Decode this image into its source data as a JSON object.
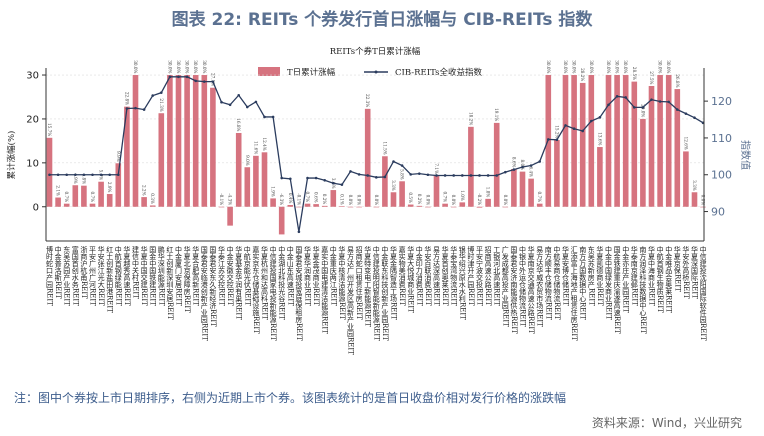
{
  "title": "图表 22: REITs 个券发行首日涨幅与 CIB-REITs 指数",
  "note": "注：图中个券按上市日期排序，右侧为近期上市个券。该图表统计的是首日收盘价相对发行价格的涨跌幅",
  "source": "资料来源：Wind，兴业研究",
  "colors": {
    "bar": "#d6737f",
    "line": "#2b3c5e",
    "title": "#5b7191"
  },
  "chart_data": {
    "type": "bar+line",
    "title": "REITs个券T日累计涨幅",
    "ylabel": "累计涨幅(%)",
    "y2label": "指数值",
    "ylim": [
      -7.8,
      31.6
    ],
    "y2lim": [
      82,
      129
    ],
    "yticks": [
      0,
      10,
      20,
      30
    ],
    "y2ticks": [
      90,
      100,
      110,
      120
    ],
    "grid": true,
    "legend_position": "top-center",
    "series": [
      {
        "name": "T日累计涨幅",
        "type": "bar",
        "values": [
          15.7,
          2.1,
          0.7,
          4.9,
          4.8,
          0.7,
          5.7,
          2.9,
          9.9,
          22.8,
          30.0,
          2.2,
          0.3,
          21.3,
          30.0,
          30.0,
          30.0,
          30.0,
          30.0,
          27.1,
          -0.1,
          -4.3,
          16.8,
          9.0,
          11.6,
          12.4,
          1.9,
          -6.3,
          0.4,
          -0.1,
          0.7,
          0.6,
          0.2,
          3.8,
          0.1,
          0.0,
          0.0,
          22.3,
          0.0,
          11.5,
          3.3,
          5.8,
          0.5,
          0.2,
          0.0,
          7.1,
          0.7,
          0.0,
          1.0,
          18.2,
          -0.2,
          1.8,
          19.1,
          0.0,
          8.6,
          8.0,
          6.4,
          0.7,
          30.0,
          15.2,
          30.0,
          30.0,
          28.2,
          30.0,
          13.6,
          30.0,
          30.0,
          30.0,
          28.5,
          20.0,
          27.5,
          30.0,
          30.0,
          26.8,
          12.6,
          3.3,
          0.0
        ]
      },
      {
        "name": "CIB-REITs全收益指数",
        "type": "line",
        "values": [
          100.0,
          100.0,
          100.0,
          100.0,
          100.0,
          100.0,
          100.0,
          100.0,
          100.0,
          118.0,
          118.1,
          117.7,
          121.5,
          122.3,
          126.6,
          126.6,
          126.6,
          125.5,
          125.3,
          125.3,
          119.7,
          119.0,
          121.6,
          118.4,
          119.8,
          115.7,
          115.7,
          99.1,
          98.9,
          84.5,
          99.1,
          99.1,
          98.5,
          97.7,
          97.3,
          100.9,
          100.1,
          99.8,
          99.3,
          99.4,
          103.6,
          102.5,
          100.1,
          100.3,
          100.0,
          99.8,
          99.8,
          99.8,
          99.8,
          99.8,
          99.8,
          99.8,
          99.8,
          100.7,
          101.4,
          102.1,
          102.5,
          103.6,
          109.6,
          109.5,
          113.4,
          112.5,
          111.9,
          114.6,
          115.6,
          119.0,
          121.3,
          121.0,
          118.3,
          118.3,
          120.4,
          119.9,
          119.8,
          117.7,
          116.6,
          115.5,
          114.1
        ]
      }
    ],
    "categories": [
      "博时蛇口产园REIT",
      "中金普洛斯REIT",
      "东吴苏园产业REIT",
      "富国首创水务REIT",
      "浙商沪杭甬REIT",
      "平安广州广河REIT",
      "华安张江光大REIT",
      "红土创新盐田港REIT",
      "中航首钢绿能REIT",
      "华夏越秀高速REIT",
      "建信中关村REIT",
      "华夏中国交建REIT",
      "国金中国铁建REIT",
      "鹏华深圳能源REIT",
      "红土创新深圳安居REIT",
      "中金厦门安居REIT",
      "华夏北京保障房REIT",
      "华夏合肥高新REIT",
      "国泰君安临港创新产业园REIT",
      "国泰君安东久新经济REIT",
      "华泰江苏交控REIT",
      "中金安徽交控REIT",
      "华夏基金华润有巢REIT",
      "中航京能光伏REIT",
      "嘉实京东仓储基础设施REIT",
      "华夏杭州和达高科REIT",
      "中信建投国家电投新能源REIT",
      "中金湖北科投光谷REIT",
      "中金山东高速REIT",
      "国泰君安城投宽庭保租房REIT",
      "华夏华润商业REIT",
      "华夏金茂商业REIT",
      "嘉实中国电建清洁能源REIT",
      "中金重庆两江REIT",
      "华夏中核清洁能源REIT",
      "易方达广州开发区高新产业园REIT",
      "招商蛇口租赁住房REIT",
      "华夏特变电工新能源REIT",
      "中信建投明阳智能新能源REIT",
      "中金联东科技创新产业园REIT",
      "华夏金隅智造工场REIT",
      "嘉实物美消费REIT",
      "华夏大悦城商业REIT",
      "中金印力消费REIT",
      "华安百联消费REIT",
      "易方达深高速REIT",
      "华夏首创奥莱REIT",
      "华泰宝湾物流REIT",
      "银华绍兴原水水利REIT",
      "博时津开产园REIT",
      "平安宁波交投REIT",
      "招商高速公路REIT",
      "工银河北高速REIT",
      "广发成都高投产业园REIT",
      "国泰君安济南能源供热REIT",
      "中银中外运仓储物流REIT",
      "华夏南京交通高速公路REIT",
      "易方达华威农贸市场REIT",
      "南方顺丰仓储物流REIT",
      "中航易商仓储物流REIT",
      "华夏安博仓储REIT",
      "汇添富上海地产租赁住房REIT",
      "南方万国数据中心REIT",
      "东吴苏新房产REIT",
      "华夏凯德商业REIT",
      "中金中国绿发商业REIT",
      "国金铁建重庆渝遂高速REIT",
      "中金亦庄产业园REIT",
      "华泰南京建邺REIT",
      "南方润泽科技数据中心REIT",
      "华夏中海商业REIT",
      "中航首钢生物质REIT",
      "中金唯品会奥莱REIT",
      "华夏京保REIT",
      "华安外高桥REIT",
      "华夏深国际REIT",
      "中信建投沈阳国际软件园REIT"
    ]
  }
}
